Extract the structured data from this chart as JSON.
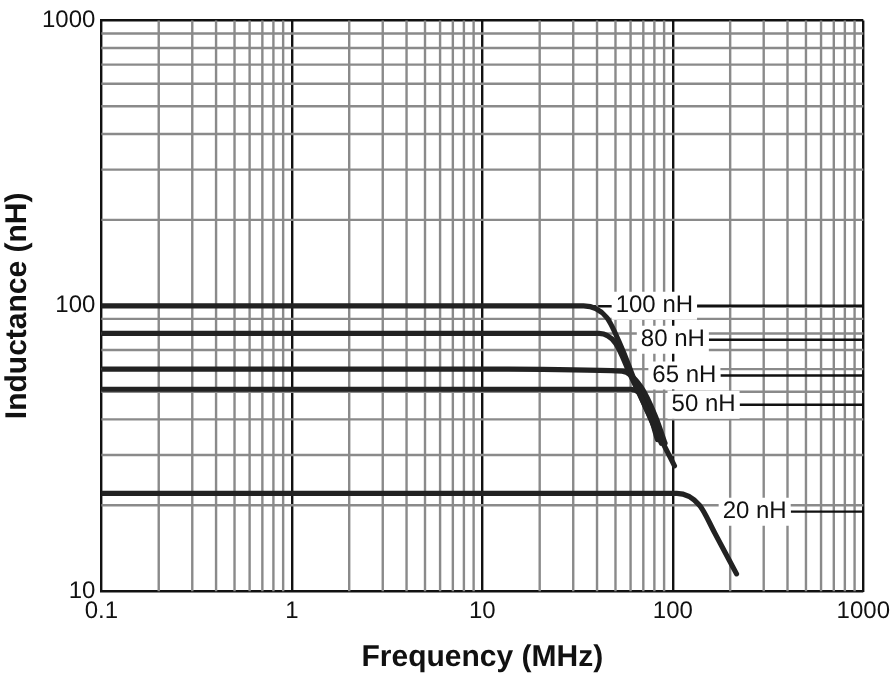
{
  "chart_data": {
    "type": "line",
    "xlabel": "Frequency (MHz)",
    "ylabel": "Inductance (nH)",
    "log": "xy",
    "xlim": [
      0.1,
      1000
    ],
    "ylim": [
      10,
      1000
    ],
    "xticks": [
      0.1,
      1,
      10,
      100,
      1000
    ],
    "yticks": [
      10,
      100,
      1000
    ],
    "grid": true,
    "legend": false,
    "marker": "none",
    "line_style": "solid",
    "series": [
      {
        "color": "#222222",
        "x": [
          0.1,
          10,
          34,
          45,
          54,
          68,
          85,
          102
        ],
        "values": [
          100,
          100,
          100,
          91,
          71,
          48,
          35,
          27.5
        ]
      },
      {
        "color": "#222222",
        "x": [
          0.1,
          10,
          41,
          50,
          60,
          72,
          87
        ],
        "values": [
          80,
          80,
          80,
          74,
          57,
          44,
          33
        ]
      },
      {
        "color": "#222222",
        "x": [
          0.1,
          10,
          54,
          68,
          81,
          91
        ],
        "values": [
          60,
          60,
          59,
          52,
          41,
          33
        ]
      },
      {
        "color": "#222222",
        "x": [
          0.1,
          10,
          60,
          72,
          83
        ],
        "values": [
          51,
          51,
          51,
          46,
          34
        ]
      },
      {
        "color": "#222222",
        "x": [
          0.1,
          10,
          105,
          138,
          166,
          216
        ],
        "values": [
          22,
          22,
          22,
          20,
          16,
          11.5
        ]
      }
    ],
    "annotations": [
      {
        "text": "100 nH",
        "x": 80,
        "y": 100
      },
      {
        "text": "80 nH",
        "x": 100,
        "y": 76
      },
      {
        "text": "65 nH",
        "x": 115,
        "y": 57
      },
      {
        "text": "50 nH",
        "x": 145,
        "y": 45
      },
      {
        "text": "20 nH",
        "x": 269,
        "y": 19
      }
    ]
  }
}
